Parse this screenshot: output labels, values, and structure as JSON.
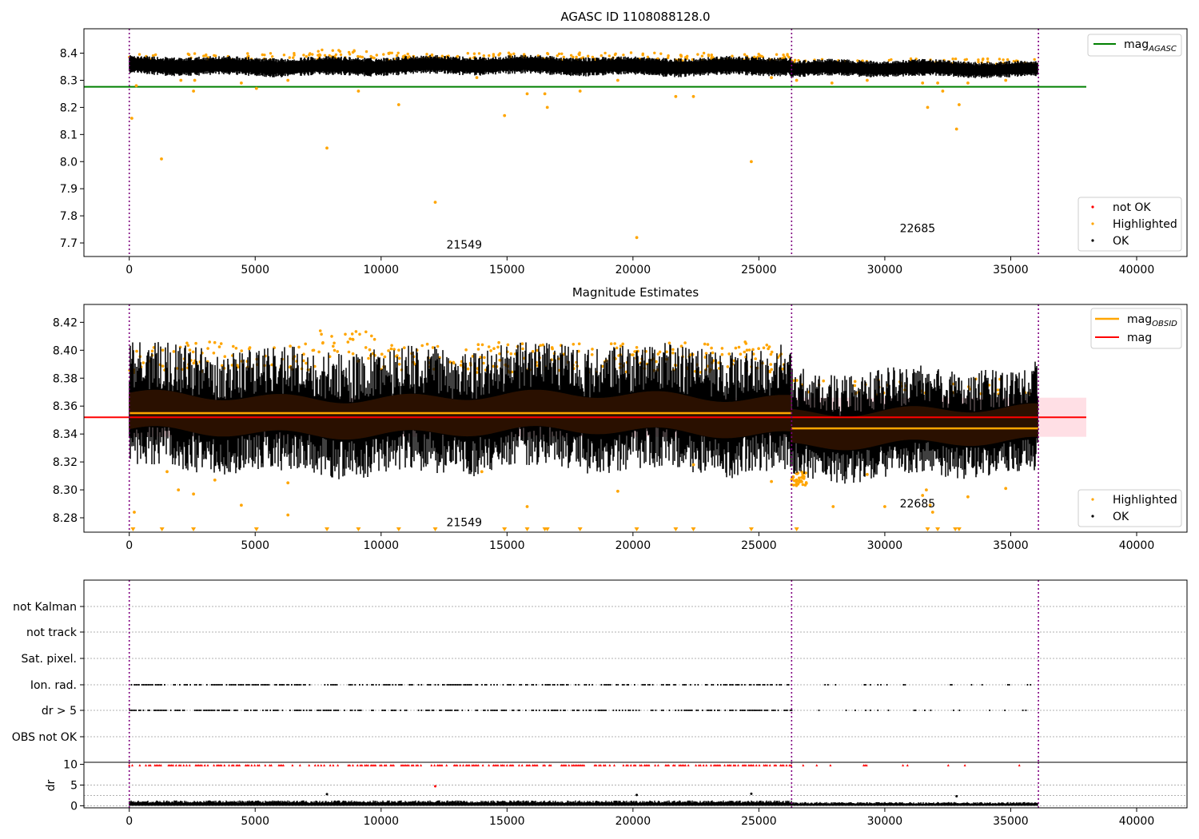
{
  "figure": {
    "title_top": "AGASC ID 1108088128.0",
    "title_middle": "Magnitude Estimates"
  },
  "chart_data": [
    {
      "type": "scatter",
      "title": "AGASC ID 1108088128.0",
      "xlim": [
        -1800,
        42000
      ],
      "ylim": [
        7.65,
        8.49
      ],
      "xticks": [
        0,
        5000,
        10000,
        15000,
        20000,
        25000,
        30000,
        35000,
        40000
      ],
      "yticks": [
        7.7,
        7.8,
        7.9,
        8.0,
        8.1,
        8.2,
        8.3,
        8.4
      ],
      "ytick_labels": [
        "7.7",
        "7.8",
        "7.9",
        "8.0",
        "8.1",
        "8.2",
        "8.3",
        "8.4"
      ],
      "vlines": [
        0,
        26300,
        36100
      ],
      "mag_agasc": 8.276,
      "obsid_labels": [
        {
          "text": "21549",
          "x": 13300,
          "y": 7.68
        },
        {
          "text": "22685",
          "x": 31300,
          "y": 7.74
        }
      ],
      "ok_band": {
        "segments": [
          {
            "x_start": 0,
            "x_end": 26300,
            "center": 8.353,
            "half_width": 0.025
          },
          {
            "x_start": 26300,
            "x_end": 36100,
            "center": 8.342,
            "half_width": 0.022
          }
        ]
      },
      "highlighted_points": [
        [
          100,
          8.16
        ],
        [
          280,
          8.28
        ],
        [
          1280,
          8.01
        ],
        [
          2050,
          8.3
        ],
        [
          2550,
          8.26
        ],
        [
          2600,
          8.3
        ],
        [
          4450,
          8.29
        ],
        [
          5050,
          8.27
        ],
        [
          6300,
          8.3
        ],
        [
          7850,
          8.05
        ],
        [
          9100,
          8.26
        ],
        [
          10700,
          8.21
        ],
        [
          12150,
          7.85
        ],
        [
          13800,
          8.31
        ],
        [
          14900,
          8.17
        ],
        [
          15800,
          8.25
        ],
        [
          16500,
          8.25
        ],
        [
          16600,
          8.2
        ],
        [
          17900,
          8.26
        ],
        [
          19400,
          8.3
        ],
        [
          20150,
          7.72
        ],
        [
          21700,
          8.24
        ],
        [
          22400,
          8.24
        ],
        [
          24700,
          8.0
        ],
        [
          25500,
          8.31
        ],
        [
          26500,
          8.3
        ],
        [
          27900,
          8.29
        ],
        [
          29300,
          8.3
        ],
        [
          31500,
          8.29
        ],
        [
          31700,
          8.2
        ],
        [
          32100,
          8.29
        ],
        [
          32300,
          8.26
        ],
        [
          32850,
          8.12
        ],
        [
          32950,
          8.21
        ],
        [
          33300,
          8.29
        ],
        [
          34800,
          8.3
        ]
      ],
      "legend": {
        "position": "lower-right",
        "entries": [
          "not OK",
          "Highlighted",
          "OK"
        ],
        "line_entry_main": "mag",
        "line_entry_sub": "AGASC"
      },
      "colors": {
        "ok": "#000000",
        "highlighted": "#ffa500",
        "not_ok": "#ff0000",
        "mag_agasc": "#008000",
        "vline": "#800080"
      }
    },
    {
      "type": "scatter",
      "title": "Magnitude Estimates",
      "xlim": [
        -1800,
        42000
      ],
      "ylim": [
        8.2697,
        8.4328
      ],
      "xticks": [
        0,
        5000,
        10000,
        15000,
        20000,
        25000,
        30000,
        35000,
        40000
      ],
      "yticks": [
        8.28,
        8.3,
        8.32,
        8.34,
        8.36,
        8.38,
        8.4,
        8.42
      ],
      "ytick_labels": [
        "8.28",
        "8.30",
        "8.32",
        "8.34",
        "8.36",
        "8.38",
        "8.40",
        "8.42"
      ],
      "vlines": [
        0,
        26300,
        36100
      ],
      "mag": 8.352,
      "mag_band": [
        8.338,
        8.366
      ],
      "mag_obsid": [
        {
          "x_start": 0,
          "x_end": 26300,
          "value": 8.355
        },
        {
          "x_start": 26300,
          "x_end": 36100,
          "value": 8.344
        }
      ],
      "obsid_labels": [
        {
          "text": "21549",
          "x": 13300,
          "y": 8.274
        },
        {
          "text": "22685",
          "x": 31300,
          "y": 8.2875
        }
      ],
      "below_axis_markers_x": [
        150,
        1300,
        2550,
        5050,
        7850,
        9100,
        10700,
        12150,
        14900,
        15800,
        16500,
        16600,
        17900,
        20150,
        21700,
        22400,
        24700,
        26500,
        31700,
        32100,
        32800,
        32950
      ],
      "highlighted_points": [
        [
          200,
          8.284
        ],
        [
          1500,
          8.313
        ],
        [
          1950,
          8.3
        ],
        [
          2550,
          8.297
        ],
        [
          3400,
          8.307
        ],
        [
          4450,
          8.289
        ],
        [
          6300,
          8.305
        ],
        [
          6300,
          8.282
        ],
        [
          14000,
          8.313
        ],
        [
          15800,
          8.288
        ],
        [
          19400,
          8.299
        ],
        [
          22400,
          8.318
        ],
        [
          25500,
          8.306
        ],
        [
          27950,
          8.288
        ],
        [
          29300,
          8.311
        ],
        [
          30000,
          8.288
        ],
        [
          31500,
          8.296
        ],
        [
          31650,
          8.3
        ],
        [
          31800,
          8.289
        ],
        [
          31900,
          8.284
        ],
        [
          33300,
          8.295
        ],
        [
          34800,
          8.301
        ]
      ],
      "legend": {
        "position": "lower-right",
        "entries": [
          "Highlighted",
          "OK"
        ],
        "line_entries": [
          "mag OBSID",
          "mag"
        ]
      },
      "colors": {
        "ok": "#000000",
        "highlighted": "#ffa500",
        "mag": "#ff0000",
        "mag_band": "#ffc0cb",
        "mag_obsid": "#ffa500",
        "vline": "#800080"
      }
    },
    {
      "type": "scatter",
      "xlim": [
        -1800,
        42000
      ],
      "categories": [
        "not Kalman",
        "not track",
        "Sat. pixel.",
        "Ion. rad.",
        "dr > 5",
        "OBS not OK"
      ],
      "flagged_categories": [
        "Ion. rad.",
        "dr > 5"
      ],
      "vlines": [
        0,
        26300,
        36100
      ],
      "colors": {
        "flag": "#000000",
        "grid": "#b0b0b0",
        "vline": "#800080"
      }
    },
    {
      "type": "scatter",
      "ylabel": "dr",
      "xlim": [
        -1800,
        42000
      ],
      "ylim": [
        -0.5,
        10.5
      ],
      "yticks": [
        0,
        5,
        10
      ],
      "xticks": [
        0,
        5000,
        10000,
        15000,
        20000,
        25000,
        30000,
        35000,
        40000
      ],
      "vlines": [
        0,
        26300,
        36100
      ],
      "outliers": [
        [
          7850,
          2.8
        ],
        [
          12150,
          4.7
        ],
        [
          20150,
          2.6
        ],
        [
          24700,
          2.9
        ],
        [
          32850,
          2.3
        ]
      ],
      "colors": {
        "ok": "#000000",
        "clipped": "#ff0000",
        "vline": "#800080"
      }
    }
  ]
}
